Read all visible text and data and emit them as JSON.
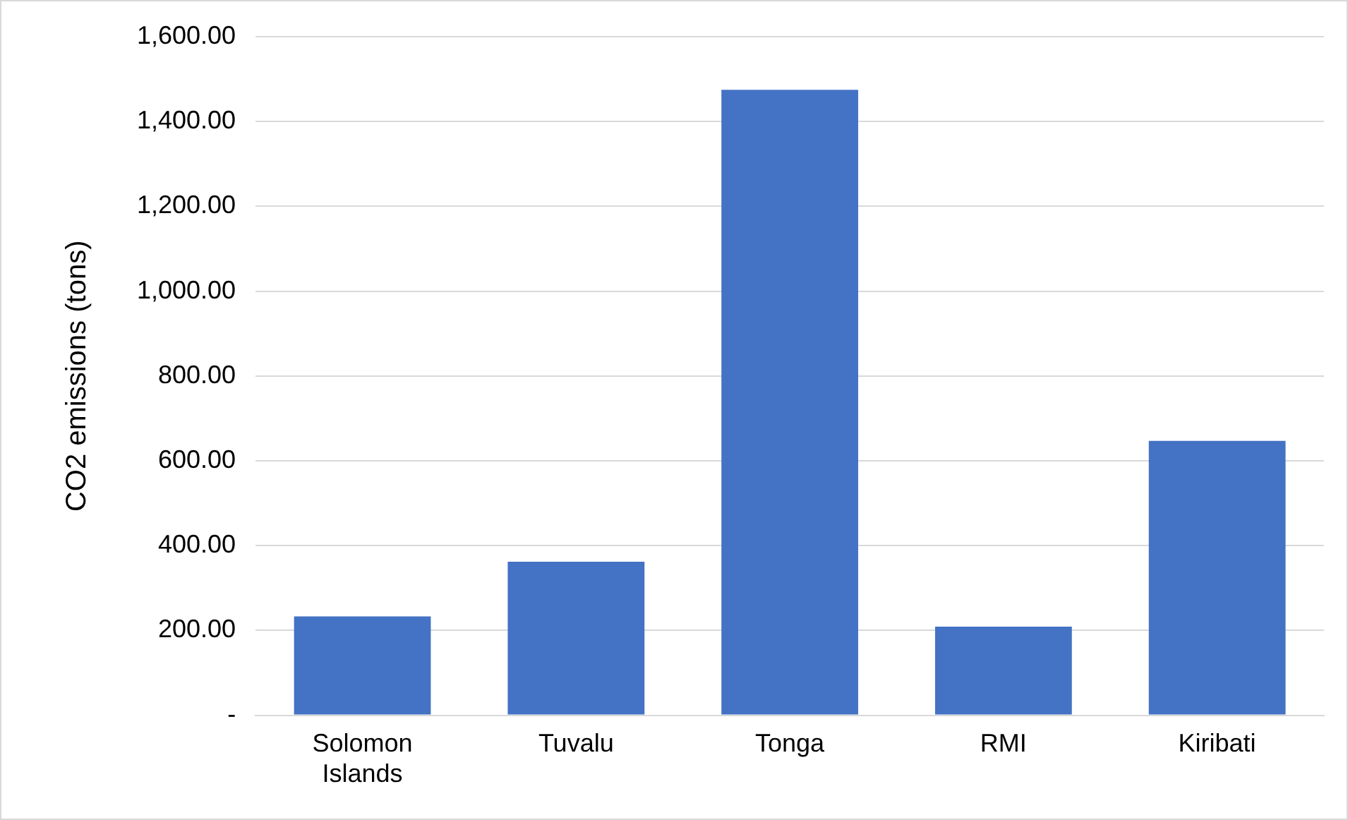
{
  "chart_data": {
    "type": "bar",
    "ylabel": "CO2 emissions (tons)",
    "categories": [
      "Solomon Islands",
      "Tuvalu",
      "Tonga",
      "RMI",
      "Kiribati"
    ],
    "values": [
      233,
      362,
      1475,
      209,
      647
    ],
    "color": "#4472c4",
    "ylim": [
      0,
      1600
    ],
    "yticks": [
      {
        "value": 0,
        "label": "-"
      },
      {
        "value": 200,
        "label": "200.00"
      },
      {
        "value": 400,
        "label": "400.00"
      },
      {
        "value": 600,
        "label": "600.00"
      },
      {
        "value": 800,
        "label": "800.00"
      },
      {
        "value": 1000,
        "label": "1,000.00"
      },
      {
        "value": 1200,
        "label": "1,200.00"
      },
      {
        "value": 1400,
        "label": "1,400.00"
      },
      {
        "value": 1600,
        "label": "1,600.00"
      }
    ],
    "grid": "y",
    "legend": false
  }
}
